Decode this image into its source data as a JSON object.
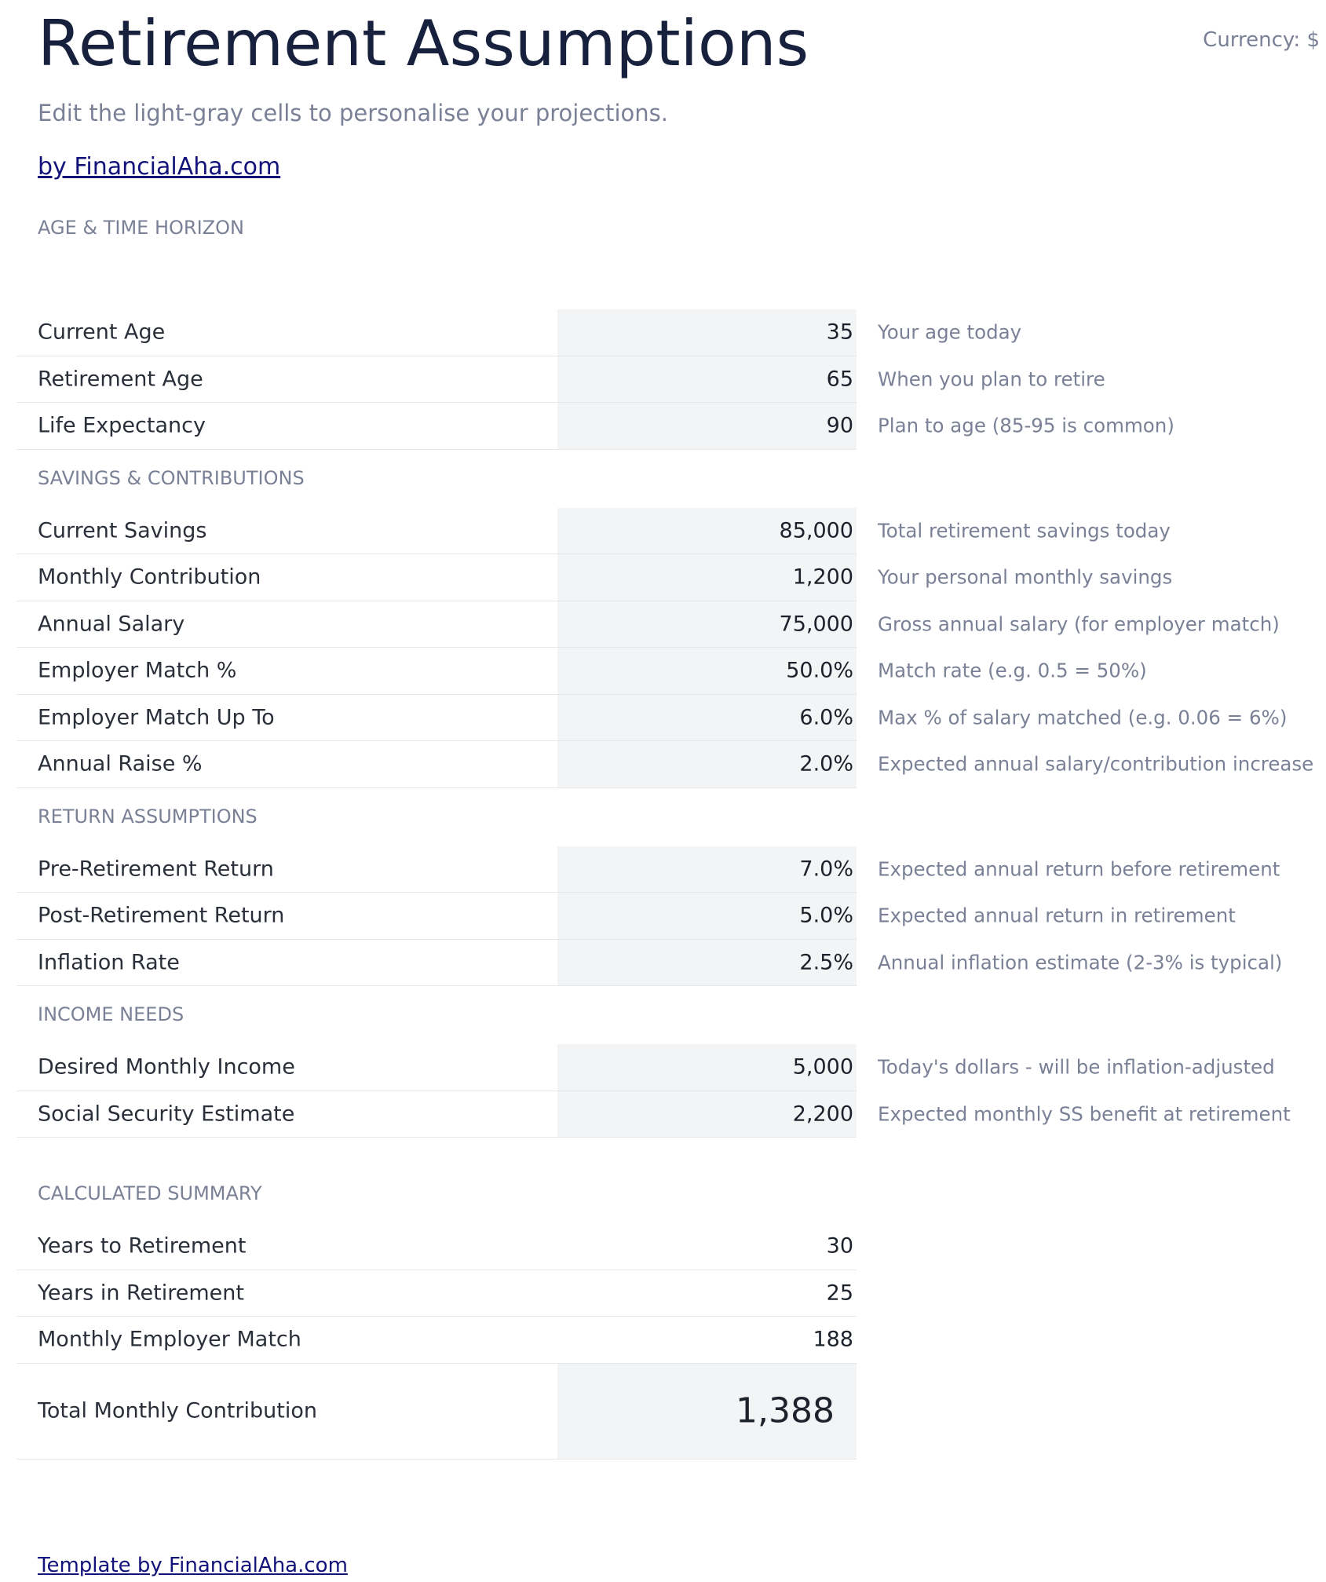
{
  "header": {
    "title": "Retirement Assumptions",
    "subtitle": "Edit the light-gray cells to personalise your projections.",
    "link": "by FinancialAha.com",
    "currency": "Currency: $"
  },
  "sections": [
    {
      "title": "AGE & TIME HORIZON",
      "rows": [
        {
          "label": "Current Age",
          "value": "35",
          "note": "Your age today"
        },
        {
          "label": "Retirement Age",
          "value": "65",
          "note": "When you plan to retire"
        },
        {
          "label": "Life Expectancy",
          "value": "90",
          "note": "Plan to age (85-95 is common)"
        }
      ]
    },
    {
      "title": "SAVINGS & CONTRIBUTIONS",
      "rows": [
        {
          "label": "Current Savings",
          "value": "85,000",
          "note": "Total retirement savings today"
        },
        {
          "label": "Monthly Contribution",
          "value": "1,200",
          "note": "Your personal monthly savings"
        },
        {
          "label": "Annual Salary",
          "value": "75,000",
          "note": "Gross annual salary (for employer match)"
        },
        {
          "label": "Employer Match %",
          "value": "50.0%",
          "note": "Match rate (e.g. 0.5 = 50%)"
        },
        {
          "label": "Employer Match Up To",
          "value": "6.0%",
          "note": "Max % of salary matched (e.g. 0.06 = 6%)"
        },
        {
          "label": "Annual Raise %",
          "value": "2.0%",
          "note": "Expected annual salary/contribution increase"
        }
      ]
    },
    {
      "title": "RETURN ASSUMPTIONS",
      "rows": [
        {
          "label": "Pre-Retirement Return",
          "value": "7.0%",
          "note": "Expected annual return before retirement"
        },
        {
          "label": "Post-Retirement Return",
          "value": "5.0%",
          "note": "Expected annual return in retirement"
        },
        {
          "label": "Inflation Rate",
          "value": "2.5%",
          "note": "Annual inflation estimate (2-3% is typical)"
        }
      ]
    },
    {
      "title": "INCOME NEEDS",
      "rows": [
        {
          "label": "Desired Monthly Income",
          "value": "5,000",
          "note": "Today's dollars - will be inflation-adjusted"
        },
        {
          "label": "Social Security Estimate",
          "value": "2,200",
          "note": "Expected monthly SS benefit at retirement"
        }
      ]
    }
  ],
  "summary": {
    "title": "CALCULATED SUMMARY",
    "rows": [
      {
        "label": "Years to Retirement",
        "value": "30"
      },
      {
        "label": "Years in Retirement",
        "value": "25"
      },
      {
        "label": "Monthly Employer Match",
        "value": "188"
      }
    ],
    "total": {
      "label": "Total Monthly Contribution",
      "value": "1,388"
    }
  },
  "footer": {
    "link": "Template by FinancialAha.com"
  }
}
